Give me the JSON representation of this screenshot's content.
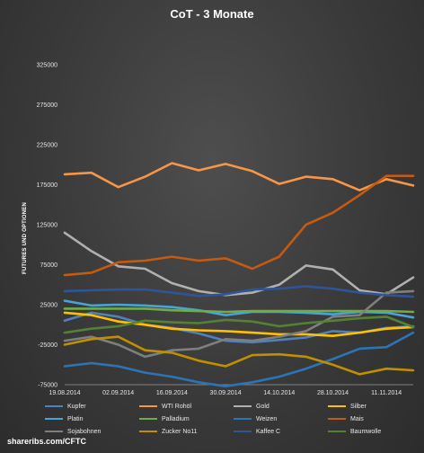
{
  "chart_data": {
    "type": "line",
    "title": "CoT - 3 Monate",
    "ylabel": "FUTURES UND OPTIONEN",
    "ylim": [
      -75000,
      325000
    ],
    "yticks": [
      -75000,
      -25000,
      25000,
      75000,
      125000,
      175000,
      225000,
      275000,
      325000
    ],
    "ytick_labels": [
      "-75000",
      "-25000",
      "25000",
      "75000",
      "125000",
      "175000",
      "225000",
      "275000",
      "325000"
    ],
    "x": [
      "19.08.2014",
      "26.08.2014",
      "02.09.2014",
      "09.09.2014",
      "16.09.2014",
      "23.09.2014",
      "30.09.2014",
      "07.10.2014",
      "14.10.2014",
      "21.10.2014",
      "28.10.2014",
      "04.11.2014",
      "11.11.2014",
      "18.11.2014"
    ],
    "xtick_labels": [
      "19.08.2014",
      "02.09.2014",
      "16.09.2014",
      "30.09.2014",
      "14.10.2014",
      "28.10.2014",
      "11.11.2014"
    ],
    "grid": false,
    "legend_position": "bottom",
    "series": [
      {
        "name": "Kupfer",
        "color": "#4f81bd",
        "values": [
          5000,
          15000,
          10000,
          0,
          -4000,
          -11000,
          -20000,
          -22000,
          -19000,
          -16000,
          -8000,
          -10000,
          -4000,
          -2000
        ]
      },
      {
        "name": "WTI Rohöl",
        "color": "#f79646",
        "values": [
          188000,
          190000,
          172000,
          185000,
          202000,
          193000,
          201000,
          192000,
          176000,
          185000,
          182000,
          168000,
          182000,
          174000
        ]
      },
      {
        "name": "Gold",
        "color": "#b0b0b0",
        "values": [
          115000,
          92000,
          73000,
          70000,
          52000,
          42000,
          37000,
          40000,
          50000,
          74000,
          69000,
          43000,
          38000,
          59000
        ]
      },
      {
        "name": "Silber",
        "color": "#ffc000",
        "values": [
          15000,
          12000,
          4000,
          0,
          -5000,
          -7000,
          -8000,
          -10000,
          -12000,
          -12000,
          -14000,
          -10000,
          -5000,
          -3000
        ]
      },
      {
        "name": "Platin",
        "color": "#4aa3d8",
        "values": [
          30000,
          24000,
          25000,
          24000,
          22000,
          18000,
          12000,
          16000,
          16000,
          15000,
          13000,
          16000,
          15000,
          9000
        ]
      },
      {
        "name": "Palladium",
        "color": "#70ad47",
        "values": [
          20000,
          20000,
          20000,
          20000,
          18000,
          17000,
          16000,
          17000,
          17000,
          17000,
          17000,
          17000,
          17000,
          16000
        ]
      },
      {
        "name": "Weizen",
        "color": "#2e74b5",
        "values": [
          -52000,
          -48000,
          -52000,
          -60000,
          -65000,
          -72000,
          -77000,
          -72000,
          -65000,
          -55000,
          -43000,
          -30000,
          -28000,
          -10000
        ]
      },
      {
        "name": "Mais",
        "color": "#c55a11",
        "values": [
          62000,
          65000,
          78000,
          80000,
          85000,
          80000,
          83000,
          70000,
          85000,
          125000,
          140000,
          162000,
          186000,
          186000
        ]
      },
      {
        "name": "Sojabohnen",
        "color": "#7f7f7f",
        "values": [
          -20000,
          -15000,
          -25000,
          -40000,
          -32000,
          -30000,
          -18000,
          -20000,
          -15000,
          -8000,
          10000,
          12000,
          40000,
          42000
        ]
      },
      {
        "name": "Zucker No11",
        "color": "#bf9000",
        "values": [
          -25000,
          -18000,
          -15000,
          -32000,
          -35000,
          -45000,
          -52000,
          -38000,
          -37000,
          -40000,
          -50000,
          -62000,
          -55000,
          -57000
        ]
      },
      {
        "name": "Kaffee C",
        "color": "#2f5597",
        "values": [
          42000,
          43000,
          44000,
          44000,
          40000,
          36000,
          38000,
          44000,
          45000,
          48000,
          45000,
          40000,
          37000,
          35000
        ]
      },
      {
        "name": "Baumwolle",
        "color": "#548235",
        "values": [
          -10000,
          -5000,
          -2000,
          5000,
          3000,
          2000,
          6000,
          4000,
          -2000,
          2000,
          5000,
          8000,
          10000,
          -3000
        ]
      }
    ]
  },
  "footer": "shareribs.com/CFTC"
}
